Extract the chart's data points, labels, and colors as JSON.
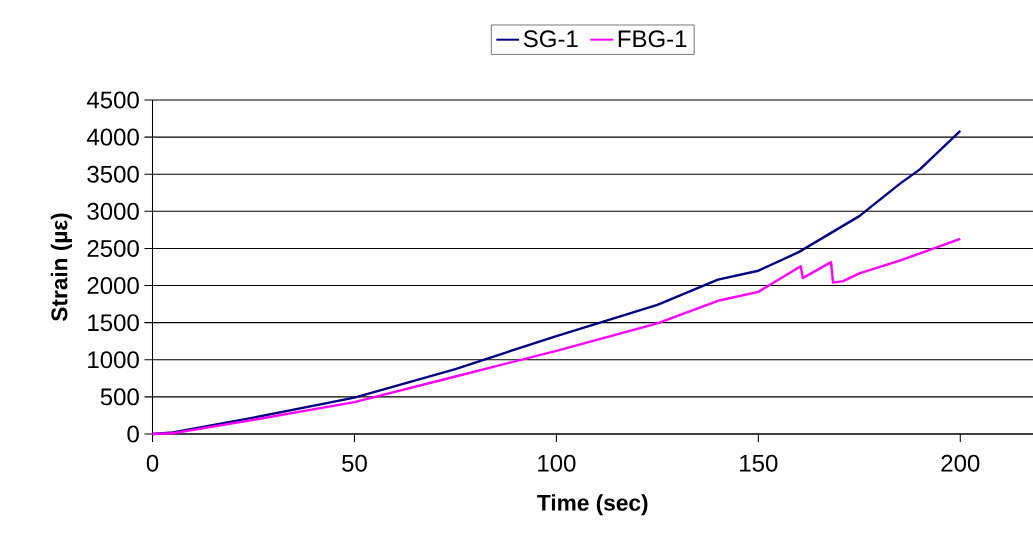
{
  "chart_data": {
    "type": "line",
    "xlabel": "Time (sec)",
    "ylabel": "Strain (µε)",
    "xlim": [
      0,
      218
    ],
    "xticks": [
      0,
      50,
      100,
      150,
      200
    ],
    "ylim": [
      0,
      4500
    ],
    "yticks": [
      0,
      500,
      1000,
      1500,
      2000,
      2500,
      3000,
      3500,
      4000,
      4500
    ],
    "grid": "y",
    "legend": "top",
    "marker": "none",
    "line_style": "solid",
    "series": [
      {
        "name": "SG-1",
        "color": "#000080",
        "x": [
          0,
          5,
          25,
          50,
          75,
          100,
          125,
          140,
          150,
          160,
          175,
          185,
          190,
          200
        ],
        "values": [
          0,
          20,
          220,
          490,
          875,
          1320,
          1740,
          2080,
          2200,
          2450,
          2935,
          3370,
          3565,
          4085
        ]
      },
      {
        "name": "FBG-1",
        "color": "#ff00ff",
        "x": [
          0,
          5,
          25,
          50,
          75,
          100,
          125,
          140,
          150,
          160.5,
          161,
          168,
          168.5,
          171,
          175,
          185,
          200
        ],
        "values": [
          0,
          10,
          190,
          430,
          775,
          1120,
          1490,
          1795,
          1915,
          2260,
          2100,
          2315,
          2040,
          2060,
          2165,
          2335,
          2630
        ]
      }
    ]
  }
}
